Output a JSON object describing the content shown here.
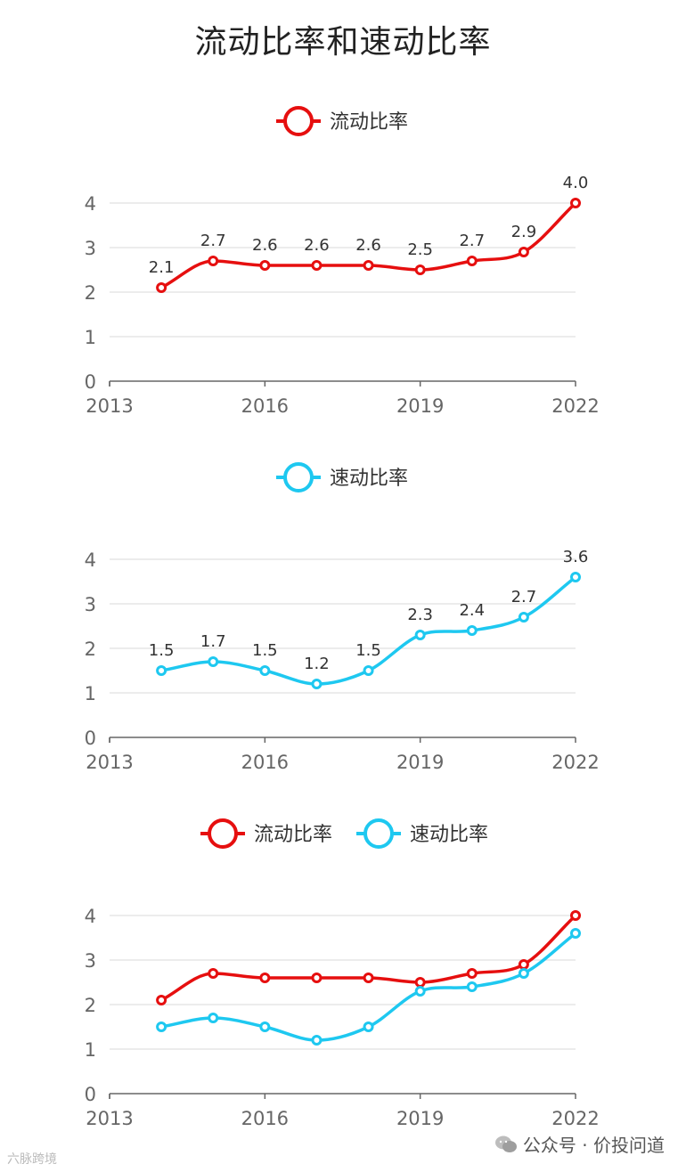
{
  "title": "流动比率和速动比率",
  "colors": {
    "current": "#e60f0f",
    "quick": "#1ec8f0",
    "grid": "#e6e6e6",
    "axis": "#666666"
  },
  "chart_data": [
    {
      "type": "line",
      "legend": [
        "流动比率"
      ],
      "x": [
        2014,
        2015,
        2016,
        2017,
        2018,
        2019,
        2020,
        2021,
        2022
      ],
      "series": [
        {
          "name": "流动比率",
          "values": [
            2.1,
            2.7,
            2.6,
            2.6,
            2.6,
            2.5,
            2.7,
            2.9,
            4.0
          ],
          "labels": [
            "2.1",
            "2.7",
            "2.6",
            "2.6",
            "2.6",
            "2.5",
            "2.7",
            "2.9",
            "4.0"
          ]
        }
      ],
      "xticks": [
        "2013",
        "2016",
        "2019",
        "2022"
      ],
      "yticks": [
        "0",
        "1",
        "2",
        "3",
        "4"
      ],
      "xlim": [
        2013,
        2022
      ],
      "ylim": [
        0,
        4
      ]
    },
    {
      "type": "line",
      "legend": [
        "速动比率"
      ],
      "x": [
        2014,
        2015,
        2016,
        2017,
        2018,
        2019,
        2020,
        2021,
        2022
      ],
      "series": [
        {
          "name": "速动比率",
          "values": [
            1.5,
            1.7,
            1.5,
            1.2,
            1.5,
            2.3,
            2.4,
            2.7,
            3.6
          ],
          "labels": [
            "1.5",
            "1.7",
            "1.5",
            "1.2",
            "1.5",
            "2.3",
            "2.4",
            "2.7",
            "3.6"
          ]
        }
      ],
      "xticks": [
        "2013",
        "2016",
        "2019",
        "2022"
      ],
      "yticks": [
        "0",
        "1",
        "2",
        "3",
        "4"
      ],
      "xlim": [
        2013,
        2022
      ],
      "ylim": [
        0,
        4
      ]
    },
    {
      "type": "line",
      "legend": [
        "流动比率",
        "速动比率"
      ],
      "x": [
        2014,
        2015,
        2016,
        2017,
        2018,
        2019,
        2020,
        2021,
        2022
      ],
      "series": [
        {
          "name": "流动比率",
          "values": [
            2.1,
            2.7,
            2.6,
            2.6,
            2.6,
            2.5,
            2.7,
            2.9,
            4.0
          ]
        },
        {
          "name": "速动比率",
          "values": [
            1.5,
            1.7,
            1.5,
            1.2,
            1.5,
            2.3,
            2.4,
            2.7,
            3.6
          ]
        }
      ],
      "xticks": [
        "2013",
        "2016",
        "2019",
        "2022"
      ],
      "yticks": [
        "0",
        "1",
        "2",
        "3",
        "4"
      ],
      "xlim": [
        2013,
        2022
      ],
      "ylim": [
        0,
        4
      ]
    }
  ],
  "watermark": {
    "text": "公众号 · 价投问道",
    "icon": "wechat-icon",
    "left_text": "六脉跨境"
  }
}
